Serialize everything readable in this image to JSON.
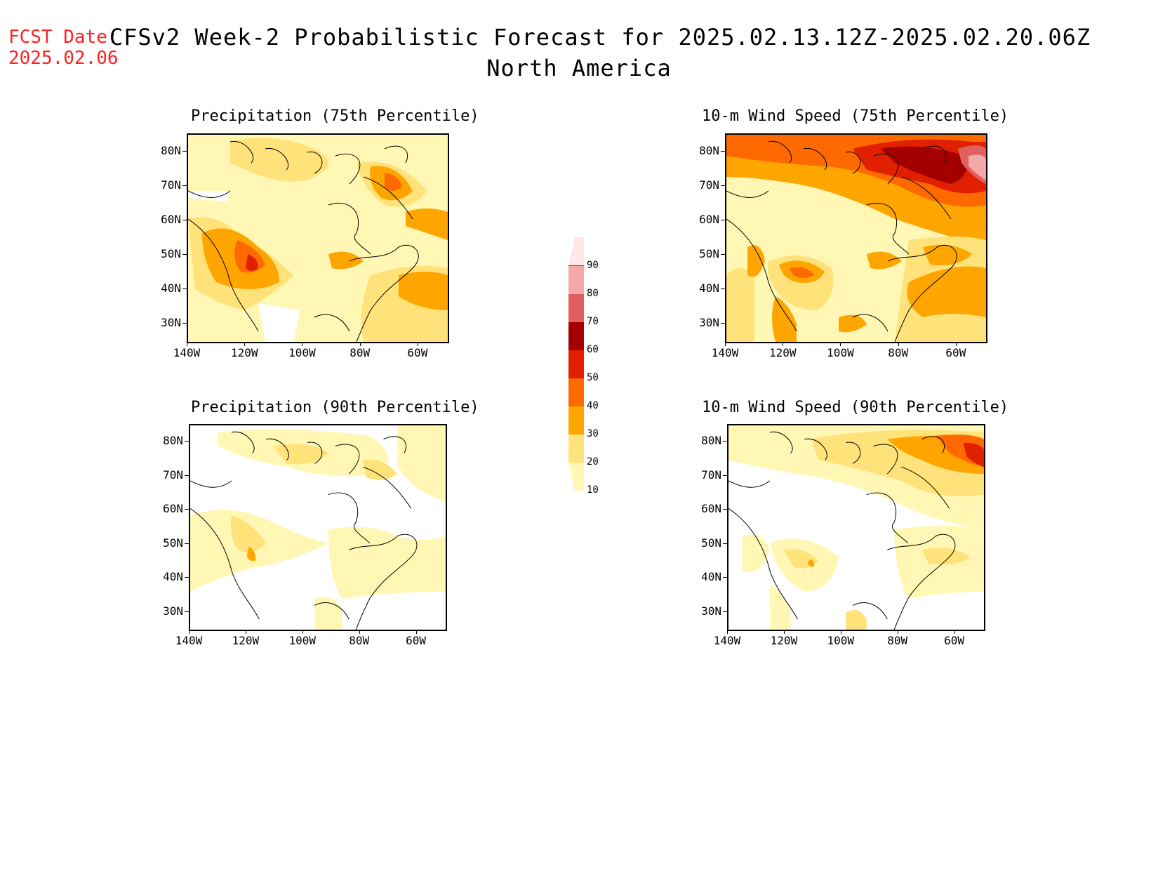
{
  "header": {
    "fcst_label": "FCST Date:",
    "fcst_date": "2025.02.06",
    "title": "CFSv2 Week-2 Probabilistic Forecast for 2025.02.13.12Z-2025.02.20.06Z",
    "subtitle": "North America"
  },
  "panels": [
    {
      "title": "Precipitation (75th Percentile)"
    },
    {
      "title": "10-m Wind Speed (75th Percentile)"
    },
    {
      "title": "Precipitation (90th Percentile)"
    },
    {
      "title": "10-m Wind Speed (90th Percentile)"
    }
  ],
  "lat_labels": [
    "80N",
    "70N",
    "60N",
    "50N",
    "40N",
    "30N"
  ],
  "lon_labels": [
    "140W",
    "120W",
    "100W",
    "80W",
    "60W"
  ],
  "colorbar": {
    "labels": [
      "10",
      "20",
      "30",
      "40",
      "50",
      "60",
      "70",
      "80",
      "90"
    ],
    "colors": [
      "#fff7b3",
      "#ffe27a",
      "#ffa500",
      "#ff6a00",
      "#e02000",
      "#a50000",
      "#e06060",
      "#f4a8a8",
      "#ffe8e8"
    ]
  }
}
